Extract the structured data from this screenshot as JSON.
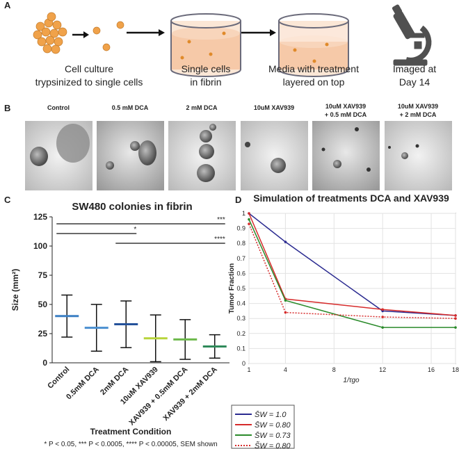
{
  "panel_a": {
    "label": "A",
    "steps": [
      [
        "Cell culture",
        "trypsinized to single cells"
      ],
      [
        "Single cells",
        "in fibrin"
      ],
      [
        "Media with treatment",
        "layered on top"
      ],
      [
        "Imaged at",
        "Day 14"
      ]
    ]
  },
  "panel_b": {
    "label": "B",
    "conditions": [
      [
        "Control"
      ],
      [
        "0.5 mM DCA"
      ],
      [
        "2 mM DCA"
      ],
      [
        "10uM XAV939"
      ],
      [
        "10uM XAV939",
        "+ 0.5 mM DCA"
      ],
      [
        "10uM XAV939",
        "+ 2 mM DCA"
      ]
    ]
  },
  "panel_c_label": "C",
  "panel_d_label": "D",
  "chart_data": [
    {
      "type": "errorbar",
      "title": "SW480 colonies in fibrin",
      "x_label": "Treatment Condition",
      "y_label": "Size (mm²)",
      "footnote": "* P < 0.05, *** P < 0.0005, **** P < 0.00005, SEM shown",
      "categories": [
        "Control",
        "0.5mM DCA",
        "2mM DCA",
        "10uM XAV939",
        "XAV939 + 0.5mM DCA",
        "XAV939 + 2mM DCA"
      ],
      "values": [
        40,
        30,
        33,
        21,
        20,
        14
      ],
      "errors": [
        18,
        20,
        20,
        20,
        17,
        10
      ],
      "colors": [
        "#3b7fc4",
        "#4a8fd0",
        "#24519a",
        "#b7d43a",
        "#6cb84a",
        "#2f8a5a"
      ],
      "ylim": [
        0,
        125
      ],
      "yticks": [
        0,
        25,
        50,
        75,
        100,
        125
      ],
      "significance": [
        "***",
        "*",
        "****"
      ]
    },
    {
      "type": "line",
      "title": "Simulation of treatments DCA and XAV939",
      "x_label": "1/τgo",
      "y_label": "Tumor Fraction",
      "x": [
        1,
        4,
        12,
        18
      ],
      "xlim": [
        1,
        18
      ],
      "xticks": [
        1,
        4,
        8,
        12,
        16,
        18
      ],
      "ylim": [
        0,
        1
      ],
      "yticks": [
        0,
        0.1,
        0.2,
        0.3,
        0.4,
        0.5,
        0.6,
        0.7,
        0.8,
        0.9,
        1
      ],
      "grid": true,
      "series": [
        {
          "name": "S̄W = 1.0",
          "color": "#2a2a90",
          "style": "solid",
          "values": [
            1,
            0.81,
            0.35,
            0.32
          ]
        },
        {
          "name": "S̄W = 0.80",
          "color": "#d62a2a",
          "style": "solid",
          "values": [
            1,
            0.43,
            0.36,
            0.32
          ]
        },
        {
          "name": "S̄W = 0.73",
          "color": "#2a8a2a",
          "style": "solid",
          "values": [
            0.96,
            0.42,
            0.24,
            0.24
          ]
        },
        {
          "name": "S̃W = 0.80",
          "color": "#d62a2a",
          "style": "dotted",
          "values": [
            0.93,
            0.34,
            0.31,
            0.3
          ]
        }
      ]
    }
  ]
}
